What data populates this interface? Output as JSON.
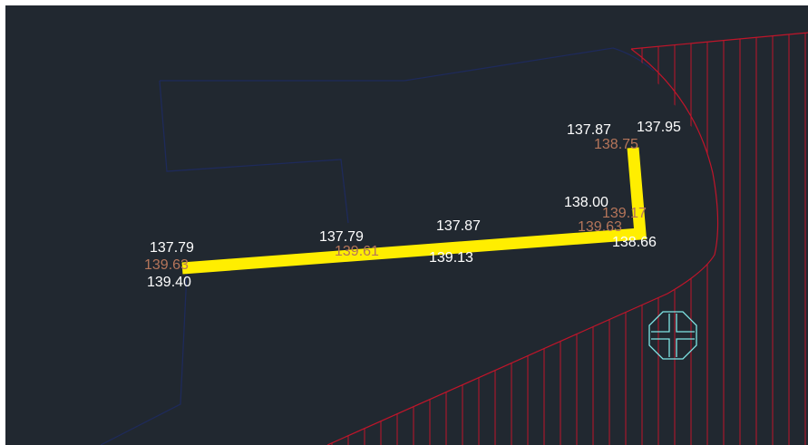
{
  "colors": {
    "background": "#212830",
    "frame": "#ffffff",
    "boundary_line": "#1e2a5a",
    "hatch": "#c0152a",
    "highlight": "#ffee00",
    "elevation_white": "#ffffff",
    "elevation_brown": "#b5755a",
    "marker": "#7fe6e6"
  },
  "labels": [
    {
      "id": "l1",
      "text": "137.79",
      "tone": "white"
    },
    {
      "id": "l2",
      "text": "139.63",
      "tone": "brown"
    },
    {
      "id": "l3",
      "text": "139.40",
      "tone": "white"
    },
    {
      "id": "l4",
      "text": "137.79",
      "tone": "white"
    },
    {
      "id": "l5",
      "text": "139.61",
      "tone": "brown"
    },
    {
      "id": "l6",
      "text": "137.87",
      "tone": "white"
    },
    {
      "id": "l7",
      "text": "139.13",
      "tone": "white"
    },
    {
      "id": "l8",
      "text": "138.00",
      "tone": "white"
    },
    {
      "id": "l9",
      "text": "139.17",
      "tone": "brown"
    },
    {
      "id": "l10",
      "text": "139.63",
      "tone": "brown"
    },
    {
      "id": "l11",
      "text": "138.66",
      "tone": "white"
    },
    {
      "id": "l12",
      "text": "137.87",
      "tone": "white"
    },
    {
      "id": "l13",
      "text": "137.95",
      "tone": "white"
    },
    {
      "id": "l14",
      "text": "138.75",
      "tone": "brown"
    }
  ],
  "icons": {
    "marker": "octagon-crosshair-icon"
  }
}
